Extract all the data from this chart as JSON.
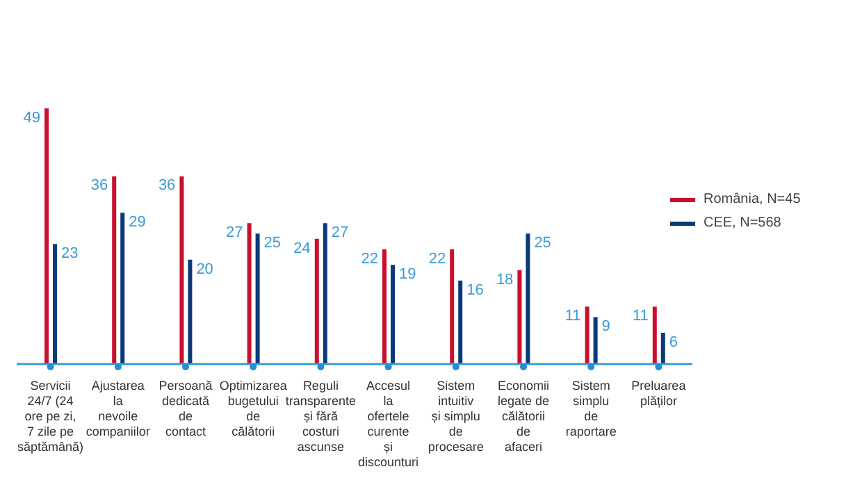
{
  "chart_data": {
    "type": "bar",
    "categories": [
      "Servicii 24/7 (24 ore pe zi, 7 zile pe săptămână)",
      "Ajustarea la nevoile companiilor",
      "Persoană dedicată de contact",
      "Optimizarea bugetului de călătorii",
      "Reguli transparente și fără costuri ascunse",
      "Accesul la ofertele curente și discounturi",
      "Sistem intuitiv și simplu de procesare",
      "Economii legate de călătorii de afaceri",
      "Sistem simplu de raportare",
      "Preluarea plăților"
    ],
    "series": [
      {
        "name": "România, N=45",
        "color": "#c8102e",
        "values": [
          49,
          36,
          36,
          27,
          24,
          22,
          22,
          18,
          11,
          11
        ]
      },
      {
        "name": "CEE, N=568",
        "color": "#0a3a7a",
        "values": [
          23,
          29,
          20,
          25,
          27,
          19,
          16,
          25,
          9,
          6
        ]
      }
    ],
    "data_labels": true,
    "legend": "right",
    "grid": false
  }
}
